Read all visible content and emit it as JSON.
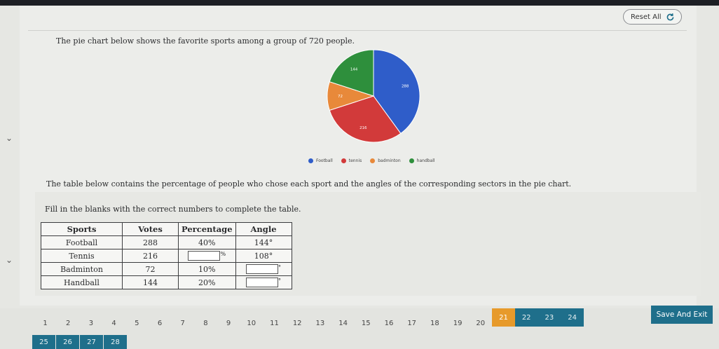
{
  "header": {
    "reset_label": "Reset All"
  },
  "question": {
    "intro": "The pie chart below shows the favorite sports among a group of 720 people.",
    "table_intro": "The table below contains the percentage of people who chose each sport and the angles of the corresponding sectors in the pie chart.",
    "instruction": "Fill in the blanks with the correct numbers to complete the table."
  },
  "chart_data": {
    "type": "pie",
    "categories": [
      "Football",
      "tennis",
      "badminton",
      "handball"
    ],
    "values": [
      288,
      216,
      72,
      144
    ],
    "colors": [
      "#2f5dc9",
      "#d23a3a",
      "#e8893a",
      "#2e8f3c"
    ],
    "title": "",
    "legend_position": "bottom"
  },
  "table": {
    "headers": [
      "Sports",
      "Votes",
      "Percentage",
      "Angle"
    ],
    "rows": [
      {
        "sport": "Football",
        "votes": "288",
        "percentage": "40%",
        "angle": "144°"
      },
      {
        "sport": "Tennis",
        "votes": "216",
        "percentage": "",
        "percentage_suffix": "%",
        "angle": "108°"
      },
      {
        "sport": "Badminton",
        "votes": "72",
        "percentage": "10%",
        "angle": "",
        "angle_suffix": "°"
      },
      {
        "sport": "Handball",
        "votes": "144",
        "percentage": "20%",
        "angle": "",
        "angle_suffix": "°"
      }
    ]
  },
  "navigation": {
    "row1": [
      "1",
      "2",
      "3",
      "4",
      "5",
      "6",
      "7",
      "8",
      "9",
      "10",
      "11",
      "12",
      "13",
      "14",
      "15",
      "16",
      "17",
      "18",
      "19",
      "20",
      "21",
      "22",
      "23",
      "24"
    ],
    "active": "21",
    "teal": [
      "22",
      "23",
      "24"
    ],
    "row2": [
      "25",
      "26",
      "27",
      "28"
    ],
    "save_label": "Save And Exit"
  },
  "icons": {
    "reset": "refresh-icon",
    "side": "chevron-down-icon"
  }
}
